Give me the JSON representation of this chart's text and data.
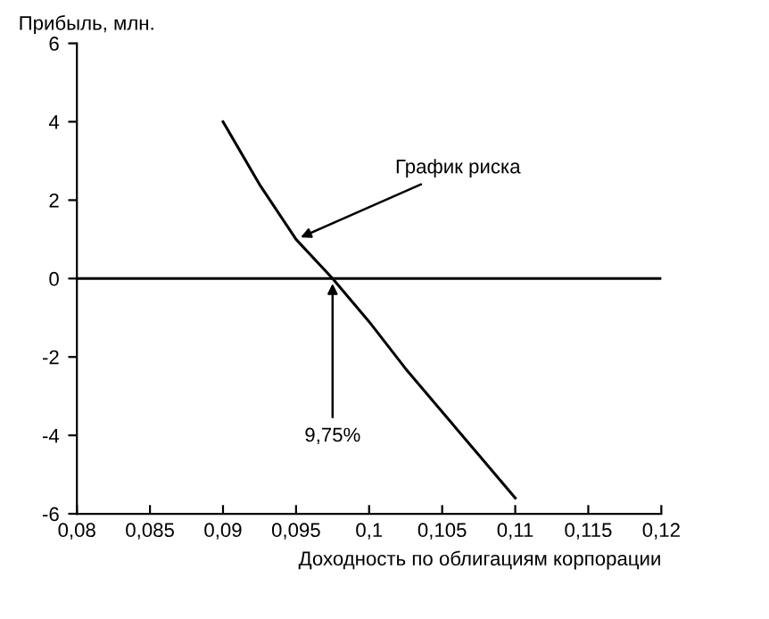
{
  "chart_data": {
    "type": "line",
    "ylabel": "Прибыль, млн.",
    "xlabel": "Доходность по облигациям корпорации",
    "x": [
      0.09,
      0.0925,
      0.095,
      0.0975,
      0.1,
      0.1025,
      0.105,
      0.1075,
      0.11
    ],
    "series": [
      {
        "color": "#000000",
        "values": [
          4,
          2.4,
          1.0,
          0,
          -1.1,
          -2.3,
          -3.4,
          -4.5,
          -5.6
        ]
      }
    ],
    "xlim": [
      0.08,
      0.12
    ],
    "xticks": [
      {
        "value": 0.08,
        "label": "0,08"
      },
      {
        "value": 0.085,
        "label": "0,085"
      },
      {
        "value": 0.09,
        "label": "0,09"
      },
      {
        "value": 0.095,
        "label": "0,095"
      },
      {
        "value": 0.1,
        "label": "0,1"
      },
      {
        "value": 0.105,
        "label": "0,105"
      },
      {
        "value": 0.11,
        "label": "0,11"
      },
      {
        "value": 0.115,
        "label": "0,115"
      },
      {
        "value": 0.12,
        "label": "0,12"
      }
    ],
    "ylim": [
      -6,
      6
    ],
    "yticks": [
      -6,
      -4,
      -2,
      0,
      2,
      4,
      6
    ],
    "ref_lines": [
      {
        "axis": "y",
        "value": 0,
        "color": "#000000"
      }
    ],
    "annotations": [
      {
        "text": "График риска",
        "x": 0.095,
        "y": 1.0
      },
      {
        "text": "9,75%",
        "x": 0.0975,
        "y": 0
      }
    ],
    "grid": false,
    "legend": false,
    "marker": "none",
    "line_style": "solid"
  }
}
